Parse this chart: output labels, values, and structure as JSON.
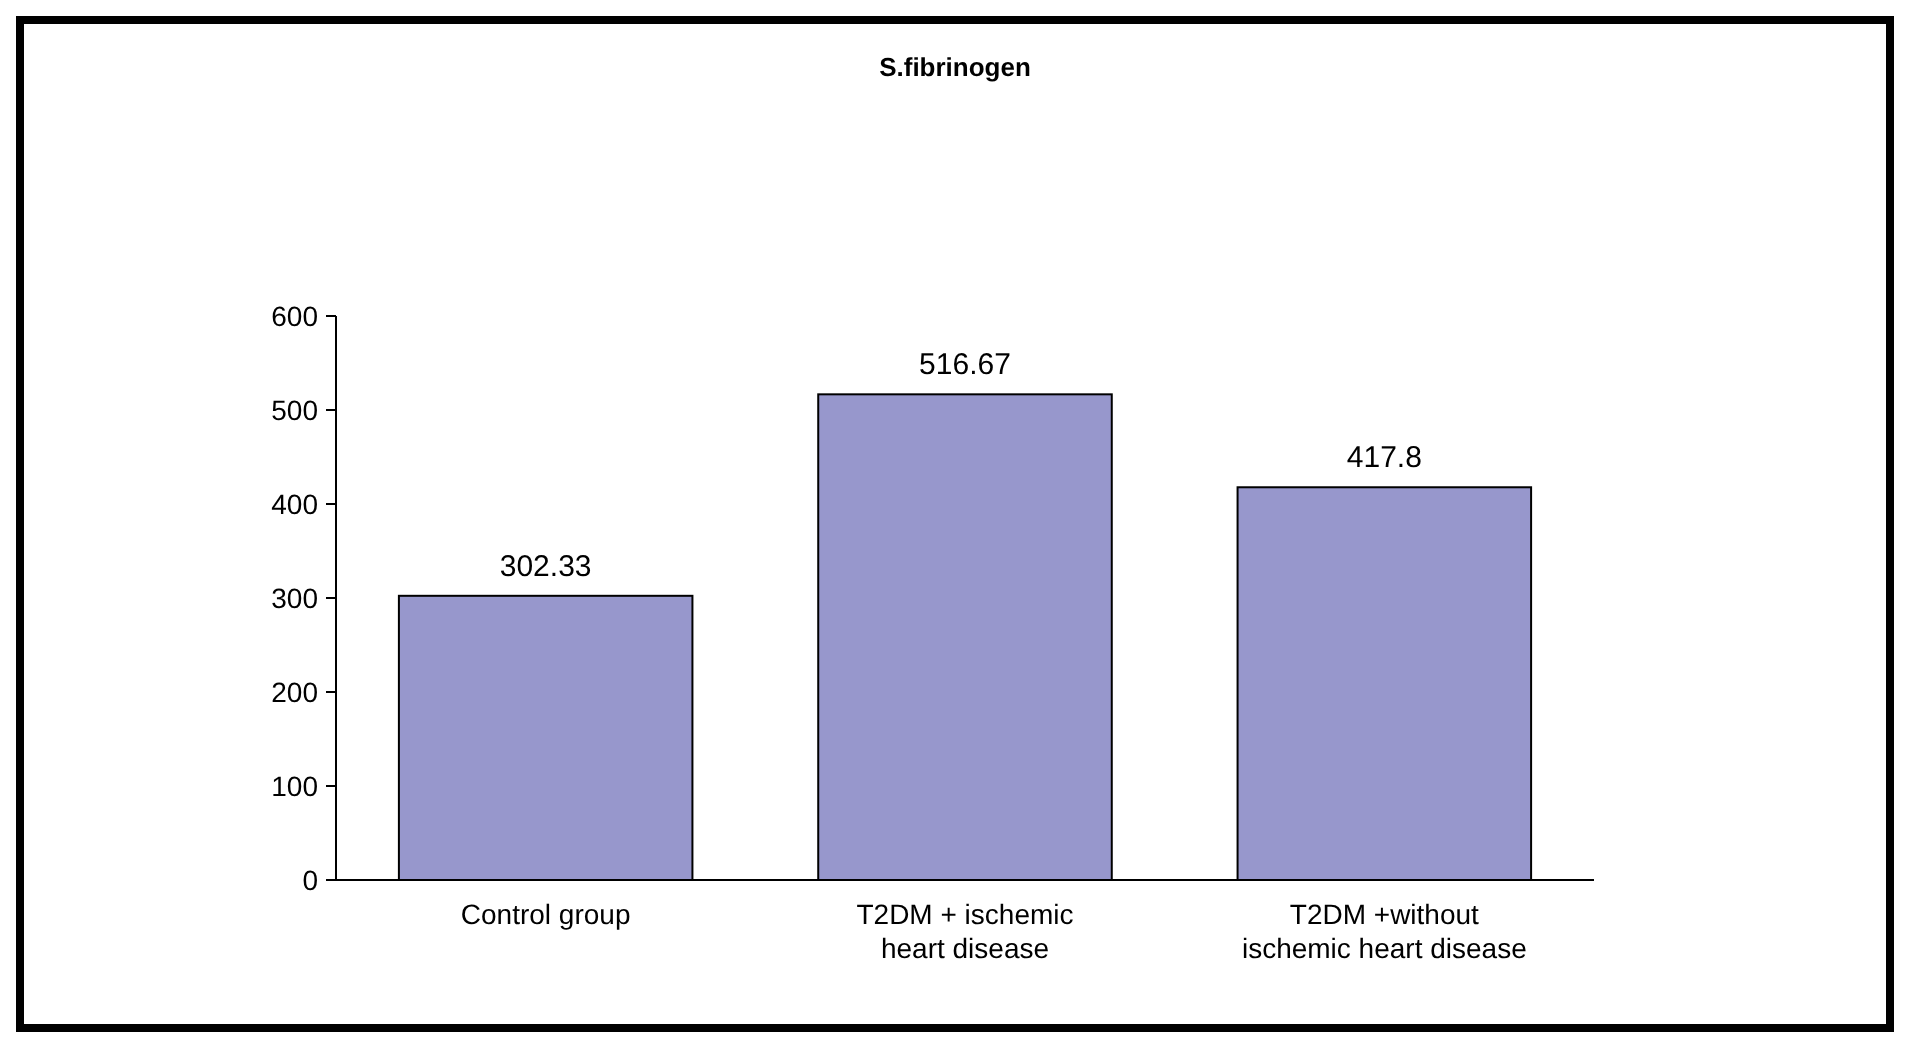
{
  "chart_data": {
    "type": "bar",
    "title": "S.fibrinogen",
    "categories": [
      "Control group",
      "T2DM + ischemic heart disease",
      "T2DM +without ischemic heart disease"
    ],
    "values": [
      302.33,
      516.67,
      417.8
    ],
    "color": "#9797cc",
    "ylim": [
      0,
      600
    ],
    "yticks": [
      0,
      100,
      200,
      300,
      400,
      500,
      600
    ],
    "data_labels": true,
    "grid": false
  }
}
